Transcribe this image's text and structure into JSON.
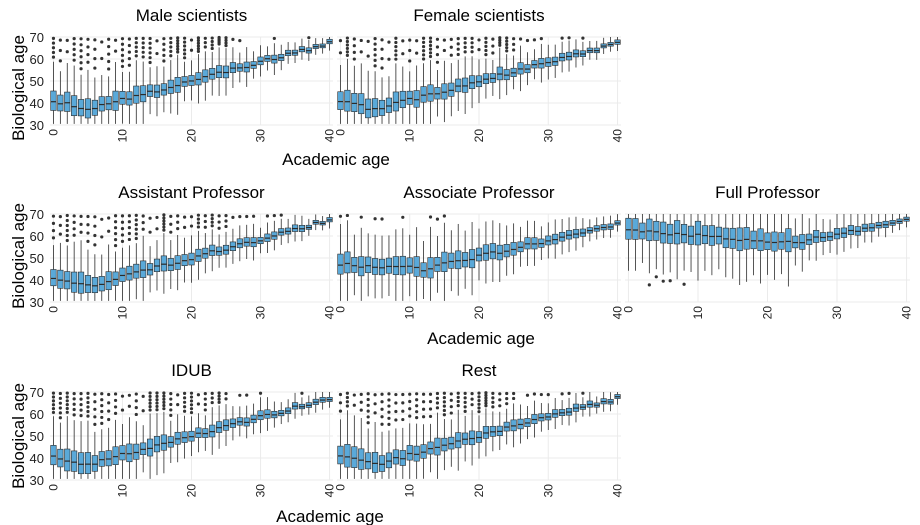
{
  "figure": {
    "y_label": "Biological age",
    "x_label": "Academic age",
    "box_fill": "#5aa9d9",
    "box_stroke": "#2b2b2b",
    "outlier_color": "#333333",
    "grid_color": "#ebebeb"
  },
  "chart_data": [
    {
      "type": "box",
      "title": "Male scientists",
      "xlabel": "Academic age",
      "ylabel": "Biological age",
      "xlim": [
        0,
        40
      ],
      "ylim": [
        30,
        70
      ],
      "xticks": [
        0,
        10,
        20,
        30,
        40
      ],
      "yticks": [
        30,
        40,
        50,
        60,
        70
      ],
      "profile": "general"
    },
    {
      "type": "box",
      "title": "Female scientists",
      "xlabel": "Academic age",
      "ylabel": "Biological age",
      "xlim": [
        0,
        40
      ],
      "ylim": [
        30,
        70
      ],
      "xticks": [
        0,
        10,
        20,
        30,
        40
      ],
      "yticks": [
        30,
        40,
        50,
        60,
        70
      ],
      "profile": "general"
    },
    {
      "type": "box",
      "title": "Assistant Professor",
      "xlabel": "Academic age",
      "ylabel": "Biological age",
      "xlim": [
        0,
        40
      ],
      "ylim": [
        30,
        70
      ],
      "xticks": [
        0,
        10,
        20,
        30,
        40
      ],
      "yticks": [
        30,
        40,
        50,
        60,
        70
      ],
      "profile": "assistant"
    },
    {
      "type": "box",
      "title": "Associate Professor",
      "xlabel": "Academic age",
      "ylabel": "Biological age",
      "xlim": [
        0,
        40
      ],
      "ylim": [
        30,
        70
      ],
      "xticks": [
        0,
        10,
        20,
        30,
        40
      ],
      "yticks": [
        30,
        40,
        50,
        60,
        70
      ],
      "profile": "associate"
    },
    {
      "type": "box",
      "title": "Full Professor",
      "xlabel": "Academic age",
      "ylabel": "Biological age",
      "xlim": [
        0,
        40
      ],
      "ylim": [
        30,
        70
      ],
      "xticks": [
        0,
        10,
        20,
        30,
        40
      ],
      "yticks": [
        30,
        40,
        50,
        60,
        70
      ],
      "profile": "full"
    },
    {
      "type": "box",
      "title": "IDUB",
      "xlabel": "Academic age",
      "ylabel": "Biological age",
      "xlim": [
        0,
        40
      ],
      "ylim": [
        30,
        70
      ],
      "xticks": [
        0,
        10,
        20,
        30,
        40
      ],
      "yticks": [
        30,
        40,
        50,
        60,
        70
      ],
      "profile": "general"
    },
    {
      "type": "box",
      "title": "Rest",
      "xlabel": "Academic age",
      "ylabel": "Biological age",
      "xlim": [
        0,
        40
      ],
      "ylim": [
        30,
        70
      ],
      "xticks": [
        0,
        10,
        20,
        30,
        40
      ],
      "yticks": [
        30,
        40,
        50,
        60,
        70
      ],
      "profile": "general"
    }
  ]
}
